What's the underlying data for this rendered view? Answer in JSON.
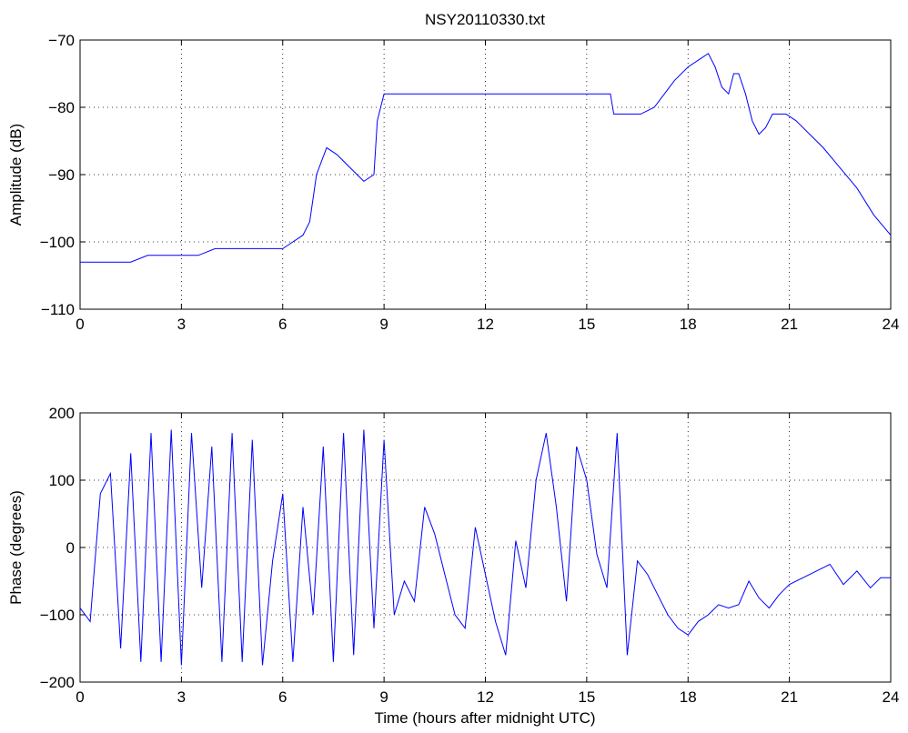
{
  "title": "NSY20110330.txt",
  "chart_data": [
    {
      "type": "line",
      "title": "NSY20110330.txt",
      "xlabel": "",
      "ylabel": "Amplitude (dB)",
      "xlim": [
        0,
        24
      ],
      "ylim": [
        -110,
        -70
      ],
      "xticks": [
        0,
        3,
        6,
        9,
        12,
        15,
        18,
        21,
        24
      ],
      "yticks": [
        -110,
        -100,
        -90,
        -80,
        -70
      ],
      "xtick_labels": [
        "0",
        "3",
        "6",
        "9",
        "12",
        "15",
        "18",
        "21",
        "24"
      ],
      "ytick_labels": [
        "−110",
        "−100",
        "−90",
        "−80",
        "−70"
      ],
      "grid": true,
      "color": "#0000ff",
      "series": [
        {
          "x": [
            0,
            0.5,
            1,
            1.5,
            2,
            2.5,
            3,
            3.5,
            4,
            4.5,
            5,
            5.5,
            6,
            6.3,
            6.6,
            6.8,
            7.0,
            7.3,
            7.6,
            8.0,
            8.4,
            8.7,
            8.8,
            9.0,
            9.5,
            10,
            11,
            12,
            13,
            14,
            15,
            15.7,
            15.8,
            16.2,
            16.6,
            17.0,
            17.3,
            17.6,
            18.0,
            18.3,
            18.6,
            18.8,
            19.0,
            19.2,
            19.35,
            19.5,
            19.7,
            19.9,
            20.1,
            20.3,
            20.5,
            20.9,
            21.2,
            21.6,
            22.0,
            22.5,
            23.0,
            23.5,
            24
          ],
          "y": [
            -103,
            -103,
            -103,
            -103,
            -102,
            -102,
            -102,
            -102,
            -101,
            -101,
            -101,
            -101,
            -101,
            -100,
            -99,
            -97,
            -90,
            -86,
            -87,
            -89,
            -91,
            -90,
            -82,
            -78,
            -78,
            -78,
            -78,
            -78,
            -78,
            -78,
            -78,
            -78,
            -81,
            -81,
            -81,
            -80,
            -78,
            -76,
            -74,
            -73,
            -72,
            -74,
            -77,
            -78,
            -75,
            -75,
            -78,
            -82,
            -84,
            -83,
            -81,
            -81,
            -82,
            -84,
            -86,
            -89,
            -92,
            -96,
            -99
          ]
        }
      ]
    },
    {
      "type": "line",
      "title": "",
      "xlabel": "Time (hours after midnight UTC)",
      "ylabel": "Phase (degrees)",
      "xlim": [
        0,
        24
      ],
      "ylim": [
        -200,
        200
      ],
      "xticks": [
        0,
        3,
        6,
        9,
        12,
        15,
        18,
        21,
        24
      ],
      "yticks": [
        -200,
        -100,
        0,
        100,
        200
      ],
      "xtick_labels": [
        "0",
        "3",
        "6",
        "9",
        "12",
        "15",
        "18",
        "21",
        "24"
      ],
      "ytick_labels": [
        "−200",
        "−100",
        "0",
        "100",
        "200"
      ],
      "grid": true,
      "color": "#0000ff",
      "series": [
        {
          "x": [
            0,
            0.3,
            0.6,
            0.9,
            1.2,
            1.5,
            1.8,
            2.1,
            2.4,
            2.7,
            3.0,
            3.3,
            3.6,
            3.9,
            4.2,
            4.5,
            4.8,
            5.1,
            5.4,
            5.7,
            6.0,
            6.3,
            6.6,
            6.9,
            7.2,
            7.5,
            7.8,
            8.1,
            8.4,
            8.7,
            9.0,
            9.3,
            9.6,
            9.9,
            10.2,
            10.5,
            10.8,
            11.1,
            11.4,
            11.7,
            12.0,
            12.3,
            12.6,
            12.9,
            13.2,
            13.5,
            13.8,
            14.1,
            14.4,
            14.7,
            15.0,
            15.3,
            15.6,
            15.9,
            16.2,
            16.5,
            16.8,
            17.1,
            17.4,
            17.7,
            18.0,
            18.3,
            18.6,
            18.9,
            19.2,
            19.5,
            19.8,
            20.1,
            20.4,
            20.7,
            21.0,
            21.4,
            21.8,
            22.2,
            22.6,
            23.0,
            23.4,
            23.7,
            24.0
          ],
          "y": [
            -90,
            -110,
            80,
            110,
            -150,
            140,
            -170,
            170,
            -170,
            175,
            -175,
            170,
            -60,
            150,
            -170,
            170,
            -170,
            160,
            -175,
            -20,
            80,
            -170,
            60,
            -100,
            150,
            -170,
            170,
            -160,
            175,
            -120,
            160,
            -100,
            -50,
            -80,
            60,
            20,
            -40,
            -100,
            -120,
            30,
            -40,
            -110,
            -160,
            10,
            -60,
            100,
            170,
            60,
            -80,
            150,
            100,
            -10,
            -60,
            170,
            -160,
            -20,
            -40,
            -70,
            -100,
            -120,
            -130,
            -110,
            -100,
            -85,
            -90,
            -85,
            -50,
            -75,
            -90,
            -70,
            -55,
            -45,
            -35,
            -25,
            -55,
            -35,
            -60,
            -45,
            -45
          ]
        }
      ]
    }
  ]
}
